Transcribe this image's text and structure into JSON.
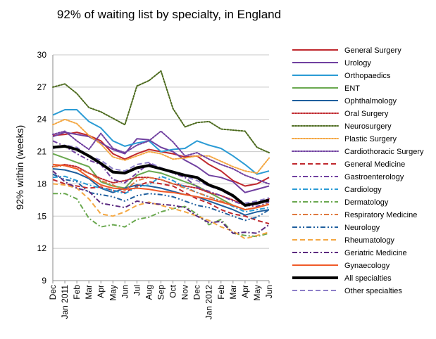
{
  "chart_data": {
    "type": "line",
    "title": "92% of waiting list by specialty, in England",
    "ylabel": "92% within (weeks)",
    "xlabel": "",
    "ylim": [
      9,
      30
    ],
    "yticks": [
      9,
      12,
      15,
      18,
      21,
      24,
      27,
      30
    ],
    "ytick_labels": [
      "9",
      "12",
      "15",
      "18",
      "21",
      "24",
      "27",
      "30"
    ],
    "grid": "horizontal",
    "legend_position": "right",
    "categories": [
      "Dec 2010",
      "Jan 2011",
      "Feb 2011",
      "Mar 2011",
      "Apr 2011",
      "May 2011",
      "Jun 2011",
      "Jul 2011",
      "Aug 2011",
      "Sep 2011",
      "Oct 2011",
      "Nov 2011",
      "Dec 2011",
      "Jan 2012",
      "Feb 2012",
      "Mar 2012",
      "Apr 2012",
      "May 2012",
      "Jun 2012"
    ],
    "tick_labels": [
      "Dec",
      "Jan 2011",
      "Feb",
      "Mar",
      "Apr",
      "May",
      "Jun",
      "Jul",
      "Aug",
      "Sep",
      "Oct",
      "Nov",
      "Dec",
      "Jan 2012",
      "Feb",
      "Mar",
      "Apr",
      "May",
      "Jun"
    ],
    "series": [
      {
        "name": "General Surgery",
        "color": "#c0282d",
        "dash": "solid",
        "width": 2,
        "values": [
          22.5,
          22.6,
          22.8,
          22.5,
          22.0,
          20.8,
          20.3,
          20.8,
          21.2,
          21.0,
          20.8,
          20.5,
          20.6,
          19.8,
          19.2,
          18.3,
          17.8,
          18.0,
          18.6
        ]
      },
      {
        "name": "Urology",
        "color": "#7040a0",
        "dash": "solid",
        "width": 2,
        "values": [
          22.4,
          22.8,
          22.6,
          22.4,
          21.8,
          21.2,
          20.8,
          22.2,
          22.1,
          21.4,
          21.0,
          20.2,
          19.6,
          18.8,
          18.6,
          18.2,
          17.2,
          17.5,
          17.8
        ]
      },
      {
        "name": "Orthopaedics",
        "color": "#2a9bd5",
        "dash": "solid",
        "width": 2,
        "values": [
          24.4,
          24.9,
          24.9,
          23.8,
          23.2,
          22.0,
          21.5,
          21.8,
          22.0,
          21.0,
          21.2,
          21.3,
          22.0,
          21.6,
          21.3,
          20.6,
          19.8,
          18.9,
          19.2
        ]
      },
      {
        "name": "ENT",
        "color": "#6aa84f",
        "dash": "solid",
        "width": 2,
        "values": [
          20.8,
          20.4,
          20.0,
          19.6,
          18.2,
          17.8,
          17.6,
          18.8,
          19.2,
          19.0,
          18.6,
          18.2,
          17.8,
          17.2,
          16.6,
          16.0,
          15.6,
          15.8,
          16.1
        ]
      },
      {
        "name": "Ophthalmology",
        "color": "#1f5f9e",
        "dash": "solid",
        "width": 2,
        "values": [
          19.4,
          19.3,
          19.0,
          18.5,
          17.6,
          17.2,
          17.6,
          17.9,
          17.8,
          17.6,
          17.3,
          17.0,
          16.8,
          16.4,
          16.0,
          15.6,
          15.1,
          15.4,
          15.6
        ]
      },
      {
        "name": "Oral Surgery",
        "color": "#c0282d",
        "dash": "dot",
        "width": 2,
        "values": [
          19.6,
          19.8,
          19.6,
          19.0,
          18.5,
          18.1,
          18.3,
          18.6,
          18.6,
          18.4,
          18.0,
          17.8,
          17.6,
          17.2,
          16.9,
          16.5,
          16.0,
          16.2,
          16.6
        ]
      },
      {
        "name": "Neurosurgery",
        "color": "#4d6b1f",
        "dash": "dot",
        "width": 2,
        "values": [
          27.0,
          27.3,
          26.4,
          25.1,
          24.7,
          24.1,
          23.5,
          27.1,
          27.6,
          28.5,
          25.0,
          23.3,
          23.7,
          23.8,
          23.1,
          23.0,
          22.9,
          21.4,
          20.9
        ]
      },
      {
        "name": "Plastic Surgery",
        "color": "#f4a742",
        "dash": "dot",
        "width": 2,
        "values": [
          23.5,
          24.0,
          23.6,
          22.5,
          21.7,
          20.5,
          20.2,
          20.6,
          21.0,
          20.8,
          20.3,
          20.4,
          20.6,
          20.6,
          20.1,
          19.6,
          19.2,
          19.0,
          20.4
        ]
      },
      {
        "name": "Cardiothoracic Surgery",
        "color": "#7040a0",
        "dash": "dot",
        "width": 2,
        "values": [
          22.6,
          22.9,
          22.0,
          21.2,
          22.7,
          21.3,
          20.9,
          21.6,
          22.0,
          22.9,
          21.9,
          20.6,
          20.9,
          20.3,
          19.8,
          19.4,
          18.8,
          18.4,
          18.0
        ]
      },
      {
        "name": "General Medicine",
        "color": "#c0282d",
        "dash": "dash",
        "width": 2,
        "values": [
          18.4,
          18.0,
          17.8,
          17.6,
          17.7,
          17.4,
          17.2,
          17.8,
          18.2,
          18.0,
          17.8,
          17.2,
          16.6,
          16.2,
          15.6,
          15.2,
          15.0,
          14.6,
          14.3
        ]
      },
      {
        "name": "Gastroenterology",
        "color": "#7040a0",
        "dash": "dashdot",
        "width": 2,
        "values": [
          22.0,
          21.5,
          20.8,
          20.2,
          19.8,
          18.4,
          18.1,
          19.0,
          19.9,
          19.4,
          19.0,
          18.6,
          17.7,
          17.3,
          16.9,
          16.4,
          16.0,
          15.9,
          16.3
        ]
      },
      {
        "name": "Cardiology",
        "color": "#2a9bd5",
        "dash": "dashdot",
        "width": 2,
        "values": [
          18.6,
          18.7,
          18.3,
          17.9,
          17.6,
          17.4,
          17.1,
          17.7,
          17.9,
          18.7,
          18.3,
          17.7,
          17.2,
          16.8,
          16.4,
          15.9,
          15.4,
          15.6,
          15.8
        ]
      },
      {
        "name": "Dermatology",
        "color": "#6aa84f",
        "dash": "dashdot",
        "width": 2,
        "values": [
          17.1,
          17.1,
          16.6,
          14.8,
          14.0,
          14.2,
          14.0,
          14.7,
          14.9,
          15.4,
          15.7,
          15.9,
          15.2,
          14.2,
          14.7,
          13.4,
          13.2,
          13.1,
          13.4
        ]
      },
      {
        "name": "Respiratory Medicine",
        "color": "#e07a3f",
        "dash": "dashdot",
        "width": 2,
        "values": [
          19.6,
          19.7,
          19.4,
          19.0,
          18.3,
          17.9,
          17.4,
          18.3,
          18.6,
          18.4,
          18.0,
          17.6,
          17.2,
          16.8,
          16.4,
          16.0,
          15.6,
          15.8,
          16.2
        ]
      },
      {
        "name": "Neurology",
        "color": "#1f5f9e",
        "dash": "dashdotdot",
        "width": 2,
        "values": [
          18.9,
          18.4,
          18.2,
          17.2,
          17.0,
          16.8,
          16.4,
          16.9,
          17.1,
          17.0,
          16.8,
          16.4,
          16.0,
          15.8,
          15.4,
          15.0,
          14.6,
          14.9,
          15.6
        ]
      },
      {
        "name": "Rheumatology",
        "color": "#f4a742",
        "dash": "dash",
        "width": 2,
        "values": [
          18.0,
          17.9,
          17.6,
          16.6,
          15.2,
          15.0,
          15.4,
          16.0,
          16.3,
          16.0,
          15.7,
          15.4,
          15.0,
          14.6,
          14.0,
          13.6,
          12.9,
          13.2,
          13.5
        ]
      },
      {
        "name": "Geriatric Medicine",
        "color": "#5b2a80",
        "dash": "dashdot",
        "width": 2,
        "values": [
          19.2,
          18.2,
          17.6,
          17.3,
          16.2,
          16.0,
          15.8,
          16.4,
          16.2,
          16.1,
          16.0,
          15.8,
          15.0,
          14.4,
          14.5,
          13.4,
          13.5,
          13.4,
          14.2
        ]
      },
      {
        "name": "Gynaecology",
        "color": "#f05a28",
        "dash": "solid",
        "width": 2,
        "values": [
          19.8,
          19.7,
          19.4,
          18.6,
          17.9,
          17.6,
          17.5,
          17.6,
          17.5,
          17.3,
          17.2,
          17.0,
          16.8,
          16.6,
          16.3,
          16.0,
          15.6,
          15.8,
          16.1
        ]
      },
      {
        "name": "All specialties",
        "color": "#000000",
        "dash": "solid",
        "width": 4,
        "values": [
          21.4,
          21.5,
          21.2,
          20.6,
          19.9,
          19.1,
          19.0,
          19.5,
          19.7,
          19.4,
          19.1,
          18.8,
          18.6,
          17.9,
          17.5,
          16.9,
          16.0,
          16.2,
          16.5
        ]
      },
      {
        "name": "Other specialties",
        "color": "#8c7ec8",
        "dash": "dash",
        "width": 2,
        "values": [
          21.3,
          21.6,
          21.4,
          20.6,
          20.2,
          19.4,
          19.2,
          19.8,
          20.0,
          19.5,
          19.1,
          18.7,
          18.3,
          17.8,
          17.4,
          16.8,
          16.2,
          16.4,
          16.7
        ]
      }
    ]
  }
}
